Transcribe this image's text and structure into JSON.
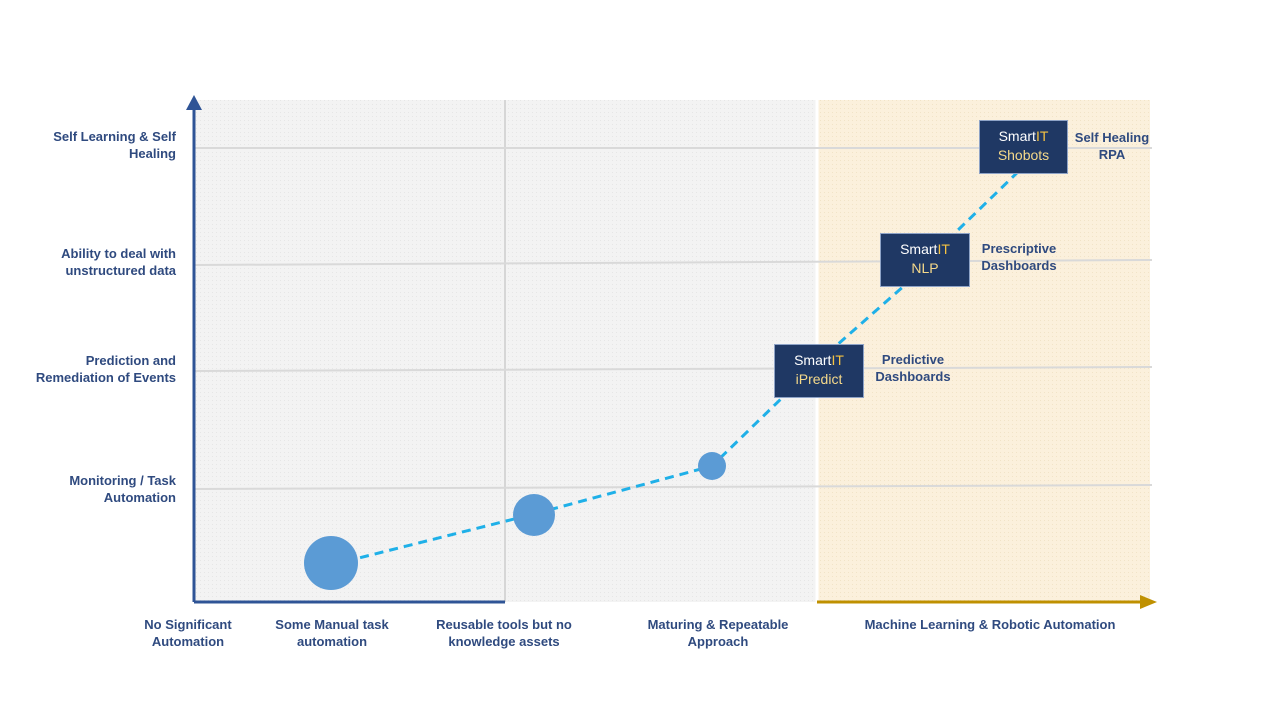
{
  "y_levels": [
    {
      "line1": "Self Learning & Self",
      "line2": "Healing"
    },
    {
      "line1": "Ability to deal with",
      "line2": "unstructured data"
    },
    {
      "line1": "Prediction and",
      "line2": "Remediation of Events"
    },
    {
      "line1": "Monitoring / Task",
      "line2": "Automation"
    }
  ],
  "x_stages": [
    {
      "line1": "No Significant",
      "line2": "Automation"
    },
    {
      "line1": "Some Manual task",
      "line2": "automation"
    },
    {
      "line1": "Reusable tools but no",
      "line2": "knowledge assets"
    },
    {
      "line1": "Maturing & Repeatable",
      "line2": "Approach"
    },
    {
      "line1": "Machine Learning & Robotic Automation",
      "line2": ""
    }
  ],
  "products": [
    {
      "brand": "Smart",
      "brand_suffix": "IT",
      "name": "iPredict",
      "annotation_line1": "Predictive",
      "annotation_line2": "Dashboards"
    },
    {
      "brand": "Smart",
      "brand_suffix": "IT",
      "name": "NLP",
      "annotation_line1": "Prescriptive",
      "annotation_line2": "Dashboards"
    },
    {
      "brand": "Smart",
      "brand_suffix": "IT",
      "name": "Shobots",
      "annotation_line1": "Self Healing",
      "annotation_line2": "RPA"
    }
  ],
  "colors": {
    "axis_y": "#2f5496",
    "axis_x_right": "#bf9000",
    "trend_line": "#1fb0e8",
    "bubble": "#5b9bd5",
    "box": "#1f3864",
    "label_text": "#2f4a7f",
    "zone_grey": "#f2f2f2",
    "zone_cream": "#fbf0dc"
  }
}
